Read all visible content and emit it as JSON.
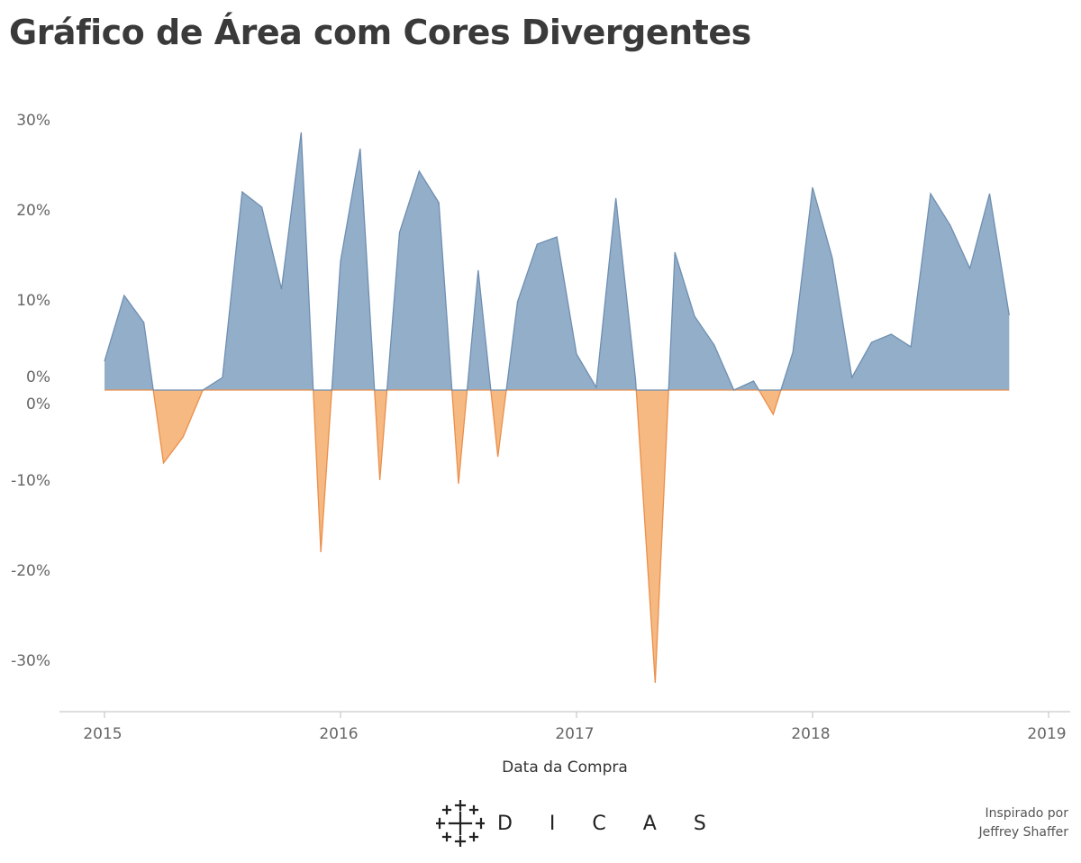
{
  "title": "Gráfico de Área com Cores Divergentes",
  "logo": {
    "text": "D I C A S",
    "icon": "tableau-plus-cluster-icon"
  },
  "credit": {
    "line1": "Inspirado por",
    "line2": "Jeffrey Shaffer"
  },
  "colors": {
    "positive": "#93aec9",
    "positive_line": "#6f8fb1",
    "negative": "#f5b981",
    "negative_line": "#eb8f4c"
  },
  "chart_data": {
    "type": "area",
    "title": "Gráfico de Área com Cores Divergentes",
    "xlabel": "Data da Compra",
    "ylabel": "",
    "x_ticks": [
      "2015",
      "2016",
      "2017",
      "2018",
      "2019"
    ],
    "y_ticks_positive": [
      "30%",
      "20%",
      "10%",
      "0%"
    ],
    "y_ticks_negative": [
      "0%",
      "-10%",
      "-20%",
      "-30%"
    ],
    "ylim": [
      -35,
      30
    ],
    "x_start": "2015-01",
    "series": [
      {
        "values": [
          3.2,
          10.5,
          7.5,
          -8.1,
          -5.2,
          0.0,
          1.4,
          22.0,
          20.3,
          11.2,
          28.6,
          -18.0,
          14.3,
          26.8,
          -10.0,
          17.5,
          24.3,
          20.8,
          -10.4,
          13.3,
          -7.4,
          9.8,
          16.2,
          17.0,
          4.0,
          0.3,
          21.3,
          1.2,
          -32.5,
          15.3,
          8.2,
          5.0,
          0.0,
          1.0,
          -2.7,
          4.2,
          22.5,
          14.7,
          1.4,
          5.3,
          6.2,
          4.8,
          21.8,
          18.3,
          13.5,
          21.8,
          8.3
        ]
      }
    ]
  }
}
